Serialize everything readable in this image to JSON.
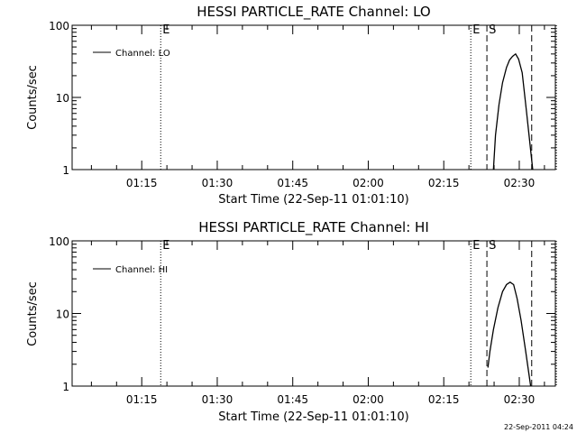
{
  "footer_timestamp": "22-Sep-2011 04:24",
  "chart_data": [
    {
      "type": "line",
      "title": "HESSI PARTICLE_RATE Channel: LO",
      "xlabel": "Start Time (22-Sep-11 01:01:10)",
      "ylabel": "Counts/sec",
      "yscale": "log",
      "ylim": [
        1,
        100
      ],
      "y_ticks": [
        1,
        10,
        100
      ],
      "y_tick_labels": [
        "1",
        "10",
        "100"
      ],
      "x_unit": "minutes since 01:01:10",
      "xlim": [
        0,
        96
      ],
      "x_ticks": [
        13.83,
        28.83,
        43.83,
        58.83,
        73.83,
        88.83
      ],
      "x_tick_labels": [
        "01:15",
        "01:30",
        "01:45",
        "02:00",
        "02:15",
        "02:30"
      ],
      "legend": {
        "position": "top-left",
        "entries": [
          "Channel: LO"
        ]
      },
      "vlines": [
        {
          "x": 17.6,
          "style": "dotted",
          "label": "E"
        },
        {
          "x": 79.2,
          "style": "dotted",
          "label": "E"
        },
        {
          "x": 82.4,
          "style": "dashed",
          "label": "S"
        },
        {
          "x": 91.3,
          "style": "dashed",
          "label": ""
        },
        {
          "x": 96.2,
          "style": "dotted",
          "label": ""
        }
      ],
      "series": [
        {
          "name": "Channel: LO",
          "x": [
            83.7,
            84.1,
            84.8,
            85.5,
            86.3,
            86.9,
            87.5,
            88.1,
            88.7,
            89.4,
            90.3,
            91.5
          ],
          "y": [
            1.0,
            3.0,
            8.0,
            16.0,
            26.0,
            33.0,
            37.0,
            40.0,
            34.0,
            22.0,
            6.0,
            1.0
          ]
        }
      ]
    },
    {
      "type": "line",
      "title": "HESSI PARTICLE_RATE Channel: HI",
      "xlabel": "Start Time (22-Sep-11 01:01:10)",
      "ylabel": "Counts/sec",
      "yscale": "log",
      "ylim": [
        1,
        100
      ],
      "y_ticks": [
        1,
        10,
        100
      ],
      "y_tick_labels": [
        "1",
        "10",
        "100"
      ],
      "x_unit": "minutes since 01:01:10",
      "xlim": [
        0,
        96
      ],
      "x_ticks": [
        13.83,
        28.83,
        43.83,
        58.83,
        73.83,
        88.83
      ],
      "x_tick_labels": [
        "01:15",
        "01:30",
        "01:45",
        "02:00",
        "02:15",
        "02:30"
      ],
      "legend": {
        "position": "top-left",
        "entries": [
          "Channel: HI"
        ]
      },
      "vlines": [
        {
          "x": 17.6,
          "style": "dotted",
          "label": "E"
        },
        {
          "x": 79.2,
          "style": "dotted",
          "label": "E"
        },
        {
          "x": 82.4,
          "style": "dashed",
          "label": "S"
        },
        {
          "x": 91.3,
          "style": "dashed",
          "label": ""
        },
        {
          "x": 96.2,
          "style": "dotted",
          "label": ""
        }
      ],
      "series": [
        {
          "name": "Channel: HI",
          "x": [
            82.6,
            83.0,
            83.7,
            84.6,
            85.5,
            86.3,
            87.0,
            87.7,
            88.4,
            89.2,
            90.1,
            91.1
          ],
          "y": [
            1.8,
            3.0,
            6.0,
            12.0,
            20.0,
            25.0,
            27.0,
            25.0,
            16.0,
            8.0,
            3.0,
            1.0
          ]
        }
      ]
    }
  ]
}
